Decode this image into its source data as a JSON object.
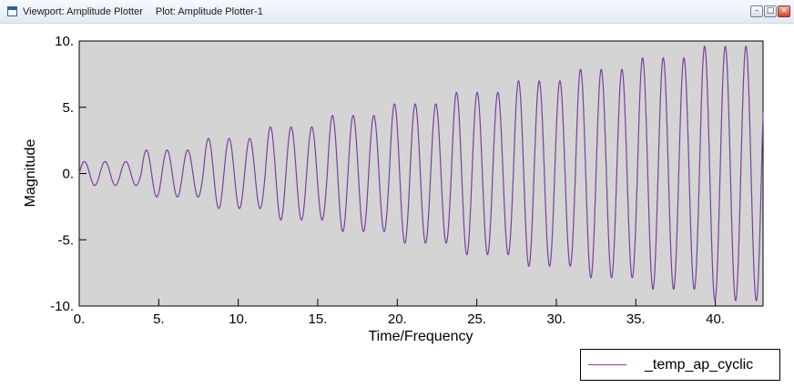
{
  "window": {
    "viewport_title": "Viewport: Amplitude Plotter",
    "plot_title": "Plot: Amplitude Plotter-1",
    "controls": [
      "minimize",
      "restore",
      "close"
    ]
  },
  "colors": {
    "plot_background": "#d4d4d4",
    "series_line": "#7b3fa0"
  },
  "chart_data": {
    "type": "line",
    "xlabel": "Time/Frequency",
    "ylabel": "Magnitude",
    "xlim": [
      0,
      43
    ],
    "ylim": [
      -10,
      10
    ],
    "x_ticks": [
      "0.",
      "5.",
      "10.",
      "15.",
      "20.",
      "25.",
      "30.",
      "35.",
      "40."
    ],
    "y_ticks": [
      "10.",
      "5.",
      "0.",
      "-5.",
      "-10."
    ],
    "grid": false,
    "legend_position": "bottom-right",
    "series": [
      {
        "name": "_temp_ap_cyclic",
        "start_amplitude": 0.9,
        "amplitude_step": 0.87,
        "cycles_per_step": 3,
        "period": 1.3,
        "x_start": 0,
        "x_end": 43
      }
    ]
  }
}
